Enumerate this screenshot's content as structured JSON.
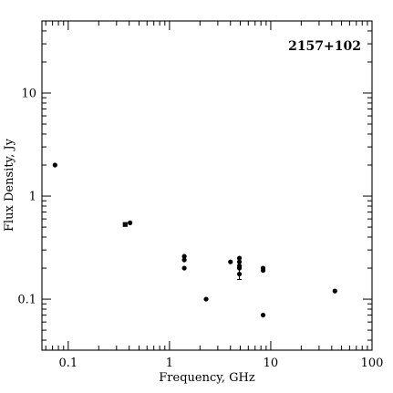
{
  "chart_data": {
    "type": "scatter",
    "title": "2157+102",
    "xlabel": "Frequency, GHz",
    "ylabel": "Flux Density, Jy",
    "xscale": "log",
    "yscale": "log",
    "xlim": [
      0.055,
      100
    ],
    "ylim": [
      0.032,
      50
    ],
    "x_tick_labels": [
      "0.1",
      "1",
      "10",
      "100"
    ],
    "y_tick_labels": [
      "0.1",
      "1",
      "10"
    ],
    "title_position": "top-right",
    "grid": false,
    "points": [
      {
        "x": 0.074,
        "y": 2.0,
        "marker": "circle"
      },
      {
        "x": 0.365,
        "y": 0.53,
        "marker": "square"
      },
      {
        "x": 0.408,
        "y": 0.55,
        "marker": "circle"
      },
      {
        "x": 1.4,
        "y": 0.26,
        "marker": "circle"
      },
      {
        "x": 1.4,
        "y": 0.24,
        "marker": "circle"
      },
      {
        "x": 1.4,
        "y": 0.2,
        "marker": "circle"
      },
      {
        "x": 2.3,
        "y": 0.1,
        "marker": "circle"
      },
      {
        "x": 4.0,
        "y": 0.23,
        "marker": "circle"
      },
      {
        "x": 4.9,
        "y": 0.25,
        "marker": "circle"
      },
      {
        "x": 4.9,
        "y": 0.23,
        "marker": "circle"
      },
      {
        "x": 4.9,
        "y": 0.21,
        "marker": "circle"
      },
      {
        "x": 4.9,
        "y": 0.2,
        "marker": "circle"
      },
      {
        "x": 4.9,
        "y": 0.175,
        "marker": "circle",
        "yerr": [
          0.155,
          0.2
        ]
      },
      {
        "x": 8.4,
        "y": 0.2,
        "marker": "circle"
      },
      {
        "x": 8.4,
        "y": 0.19,
        "marker": "circle"
      },
      {
        "x": 8.4,
        "y": 0.07,
        "marker": "circle"
      },
      {
        "x": 43,
        "y": 0.12,
        "marker": "circle"
      }
    ]
  }
}
